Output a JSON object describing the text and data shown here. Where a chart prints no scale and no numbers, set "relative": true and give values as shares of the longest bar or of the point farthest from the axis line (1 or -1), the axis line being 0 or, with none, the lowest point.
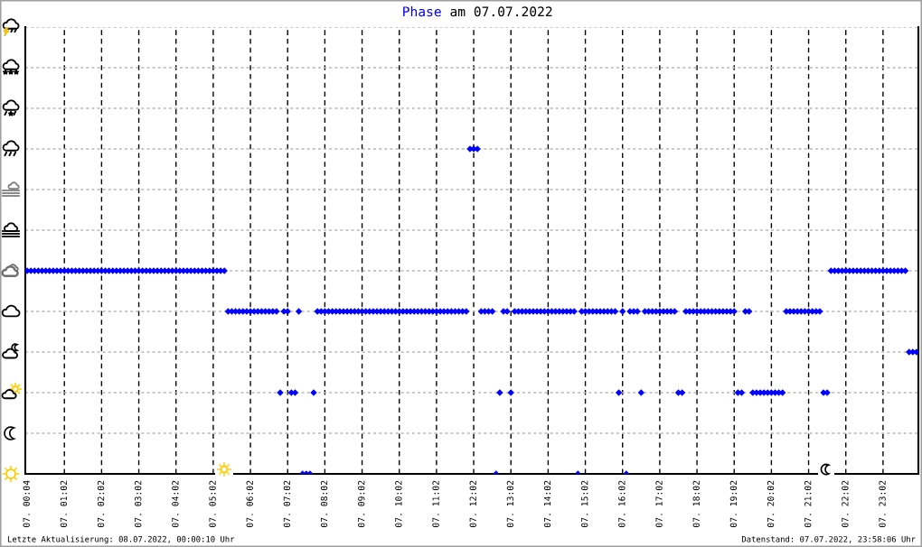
{
  "chart_data": {
    "type": "scatter",
    "title": "am 07.07.2022",
    "annotations": [
      "Letzte Aktualisierung: 08.07.2022, 00:00:10 Uhr",
      "Datenstand: 07.07.2022, 23:58:06 Uhr"
    ],
    "relative": true,
    "marker": "diamond",
    "grid": true,
    "categories": [
      "07. 00:04",
      null,
      null,
      null,
      null,
      null,
      null,
      null,
      null,
      null,
      "07. 01:02",
      null,
      null,
      null,
      null,
      null,
      null,
      null,
      null,
      null,
      "07. 02:02",
      null,
      null,
      null,
      null,
      null,
      null,
      null,
      null,
      null,
      "07. 03:02",
      null,
      null,
      null,
      null,
      null,
      null,
      null,
      null,
      null,
      "07. 04:02",
      null,
      null,
      null,
      null,
      null,
      null,
      null,
      null,
      null,
      "07. 05:02",
      null,
      null,
      null,
      null,
      null,
      null,
      null,
      null,
      null,
      "07. 06:02",
      null,
      null,
      null,
      null,
      null,
      null,
      null,
      null,
      null,
      "07. 07:02",
      null,
      null,
      null,
      null,
      null,
      null,
      null,
      null,
      null,
      "07. 08:02",
      null,
      null,
      null,
      null,
      null,
      null,
      null,
      null,
      null,
      "07. 09:02",
      null,
      null,
      null,
      null,
      null,
      null,
      null,
      null,
      null,
      "07. 10:02",
      null,
      null,
      null,
      null,
      null,
      null,
      null,
      null,
      null,
      "07. 11:02",
      null,
      null,
      null,
      null,
      null,
      null,
      null,
      null,
      null,
      "07. 12:02",
      null,
      null,
      null,
      null,
      null,
      null,
      null,
      null,
      null,
      "07. 13:02",
      null,
      null,
      null,
      null,
      null,
      null,
      null,
      null,
      null,
      "07. 14:02",
      null,
      null,
      null,
      null,
      null,
      null,
      null,
      null,
      null,
      "07. 15:02",
      null,
      null,
      null,
      null,
      null,
      null,
      null,
      null,
      null,
      "07. 16:02",
      null,
      null,
      null,
      null,
      null,
      null,
      null,
      null,
      null,
      "07. 17:02",
      null,
      null,
      null,
      null,
      null,
      null,
      null,
      null,
      null,
      "07. 18:02",
      null,
      null,
      null,
      null,
      null,
      null,
      null,
      null,
      null,
      "07. 19:02",
      null,
      null,
      null,
      null,
      null,
      null,
      null,
      null,
      null,
      "07. 20:02",
      null,
      null,
      null,
      null,
      null,
      null,
      null,
      null,
      null,
      "07. 21:02",
      null,
      null,
      null,
      null,
      null,
      null,
      null,
      null,
      null,
      "07. 22:02",
      null,
      null,
      null,
      null,
      null,
      null,
      null,
      null,
      null,
      "07. 23:02",
      null,
      null,
      null,
      null,
      null,
      null,
      null,
      null,
      null
    ],
    "series": [
      {
        "name": "Phase",
        "color": "#0000ff",
        "values": [
          0.625,
          0.625,
          0.625,
          0.625,
          0.625,
          0.625,
          0.625,
          0.625,
          0.625,
          0.625,
          0.625,
          0.625,
          0.625,
          0.625,
          0.625,
          0.625,
          0.625,
          0.625,
          0.625,
          0.625,
          0.625,
          0.625,
          0.625,
          0.625,
          0.625,
          0.625,
          0.625,
          0.625,
          0.625,
          0.625,
          0.625,
          0.625,
          0.625,
          0.625,
          0.625,
          0.625,
          0.625,
          0.625,
          0.625,
          0.625,
          0.625,
          0.625,
          0.625,
          0.625,
          0.625,
          0.625,
          0.625,
          0.625,
          0.625,
          0.625,
          0.625,
          0.625,
          0.625,
          0.625,
          0.5,
          0.5,
          0.5,
          0.5,
          0.5,
          0.5,
          0.5,
          0.5,
          0.5,
          0.5,
          0.5,
          0.5,
          0.5,
          0.5,
          0.25,
          0.5,
          0.5,
          0.25,
          0.25,
          0.5,
          0,
          0,
          0,
          0.25,
          0.5,
          0.5,
          0.5,
          0.5,
          0.5,
          0.5,
          0.5,
          0.5,
          0.5,
          0.5,
          0.5,
          0.5,
          0.5,
          0.5,
          0.5,
          0.5,
          0.5,
          0.5,
          0.5,
          0.5,
          0.5,
          0.5,
          0.5,
          0.5,
          0.5,
          0.5,
          0.5,
          0.5,
          0.5,
          0.5,
          0.5,
          0.5,
          0.5,
          0.5,
          0.5,
          0.5,
          0.5,
          0.5,
          0.5,
          0.5,
          0.5,
          1,
          1,
          1,
          0.5,
          0.5,
          0.5,
          0.5,
          0,
          0.25,
          0.5,
          0.5,
          0.25,
          0.5,
          0.5,
          0.5,
          0.5,
          0.5,
          0.5,
          0.5,
          0.5,
          0.5,
          0.5,
          0.5,
          0.5,
          0.5,
          0.5,
          0.5,
          0.5,
          0.5,
          0,
          0.5,
          0.5,
          0.5,
          0.5,
          0.5,
          0.5,
          0.5,
          0.5,
          0.5,
          0.5,
          0.25,
          0.5,
          0,
          0.5,
          0.5,
          0.5,
          0.25,
          0.5,
          0.5,
          0.5,
          0.5,
          0.5,
          0.5,
          0.5,
          0.5,
          0.5,
          0.25,
          0.25,
          0.5,
          0.5,
          0.5,
          0.5,
          0.5,
          0.5,
          0.5,
          0.5,
          0.5,
          0.5,
          0.5,
          0.5,
          0.5,
          0.5,
          0.25,
          0.25,
          0.5,
          0.5,
          0.25,
          0.25,
          0.25,
          0.25,
          0.25,
          0.25,
          0.25,
          0.25,
          0.25,
          0.5,
          0.5,
          0.5,
          0.5,
          0.5,
          0.5,
          0.5,
          0.5,
          0.5,
          0.5,
          0.25,
          0.25,
          0.625,
          0.625,
          0.625,
          0.625,
          0.625,
          0.625,
          0.625,
          0.625,
          0.625,
          0.625,
          0.625,
          0.625,
          0.625,
          0.625,
          0.625,
          0.625,
          0.625,
          0.625,
          0.625,
          0.625,
          0.625,
          0.375,
          0.375,
          0.375
        ]
      }
    ]
  }
}
